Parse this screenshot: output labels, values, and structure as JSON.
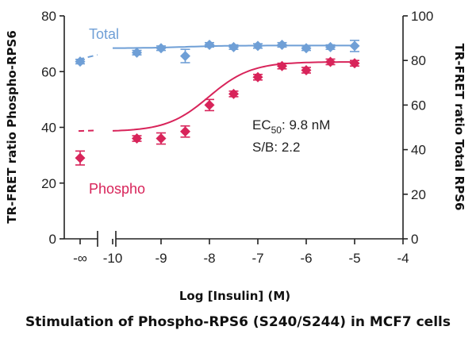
{
  "chart_data": {
    "type": "scatter",
    "title": "",
    "xlabel": "Log [Insulin] (M)",
    "ylabel_left": "TR-FRET ratio Phospho-RPS6",
    "ylabel_right": "TR-FRET ratio Total RPS6",
    "xlim": [
      -11,
      -4
    ],
    "ylim_left": [
      0,
      80
    ],
    "ylim_right": [
      0,
      100
    ],
    "x_ticks": [
      {
        "label": "-∞",
        "value": -11
      },
      {
        "label": "-10",
        "value": -10
      },
      {
        "label": "-9",
        "value": -9
      },
      {
        "label": "-8",
        "value": -8
      },
      {
        "label": "-7",
        "value": -7
      },
      {
        "label": "-6",
        "value": -6
      },
      {
        "label": "-5",
        "value": -5
      },
      {
        "label": "-4",
        "value": -4
      }
    ],
    "y_left_ticks": [
      0,
      20,
      40,
      60,
      80
    ],
    "y_right_ticks": [
      0,
      20,
      40,
      60,
      80,
      100
    ],
    "grid": false,
    "series": [
      {
        "name": "Total",
        "axis": "right",
        "color": "#6f9fd6",
        "marker": "diamond",
        "x": [
          -11,
          -9.5,
          -9,
          -8.5,
          -8,
          -7.5,
          -7,
          -6.5,
          -6,
          -5.5,
          -5
        ],
        "y": [
          79.5,
          83.5,
          85.5,
          82,
          87,
          86,
          86.5,
          87,
          85.5,
          86,
          86.5
        ],
        "err": [
          1,
          1,
          1,
          3,
          1,
          1,
          1,
          1,
          1,
          1,
          2.5
        ]
      },
      {
        "name": "Phospho",
        "axis": "left",
        "color": "#d8245a",
        "marker": "diamond",
        "x": [
          -11,
          -9.5,
          -9,
          -8.5,
          -8,
          -7.5,
          -7,
          -6.5,
          -6,
          -5.5,
          -5
        ],
        "y": [
          29,
          36,
          36,
          38.5,
          48,
          52,
          58,
          62,
          60.5,
          63.5,
          63
        ],
        "err": [
          2.5,
          1,
          2,
          2,
          2,
          1,
          1,
          1,
          1,
          1,
          1
        ]
      }
    ],
    "annotations": {
      "ec50": "9.8 nM",
      "sb": "S/B: 2.2"
    }
  },
  "caption": "Stimulation of Phospho-RPS6 (S240/S244) in MCF7 cells"
}
